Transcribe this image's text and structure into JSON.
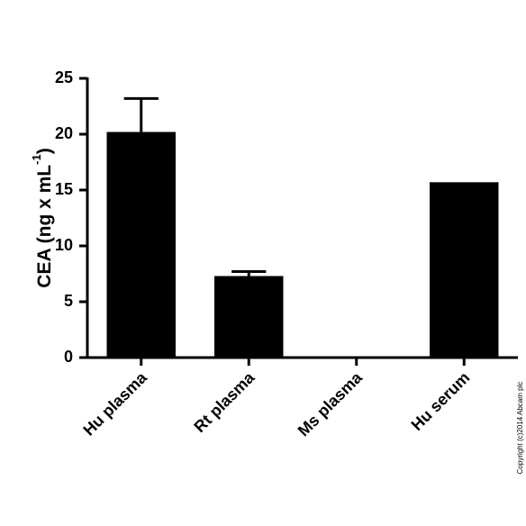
{
  "chart_data": {
    "type": "bar",
    "y_label": "CEA (ng x mL",
    "y_label_sup": "-1",
    "y_label_end": ")",
    "categories": [
      "Hu plasma",
      "Rt plasma",
      "Ms plasma",
      "Hu serum"
    ],
    "values": [
      20.2,
      7.3,
      0,
      15.7
    ],
    "errors": [
      3.0,
      0.4,
      null,
      null
    ],
    "color": "#000000",
    "ylim": [
      0,
      25
    ],
    "yticks": [
      0,
      5,
      10,
      15,
      20,
      25
    ],
    "copyright": "Copyright (c)2014 Abcam plc"
  }
}
